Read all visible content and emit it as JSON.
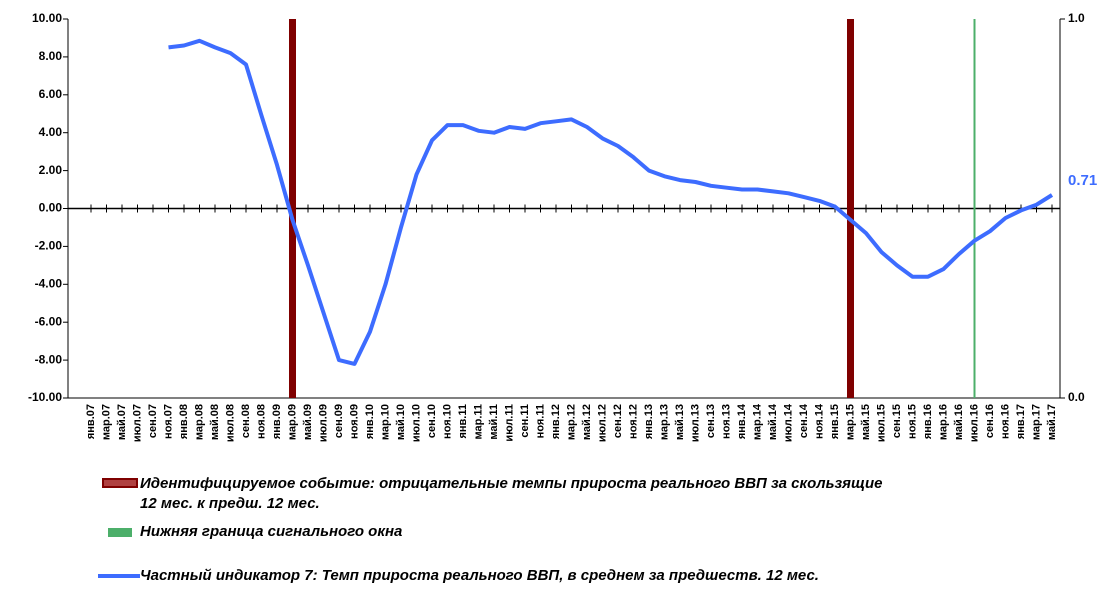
{
  "chart_data": {
    "type": "line",
    "categories": [
      "янв.07",
      "мар.07",
      "май.07",
      "июл.07",
      "сен.07",
      "ноя.07",
      "янв.08",
      "мар.08",
      "май.08",
      "июл.08",
      "сен.08",
      "ноя.08",
      "янв.09",
      "мар.09",
      "май.09",
      "июл.09",
      "сен.09",
      "ноя.09",
      "янв.10",
      "мар.10",
      "май.10",
      "июл.10",
      "сен.10",
      "ноя.10",
      "янв.11",
      "мар.11",
      "май.11",
      "июл.11",
      "сен.11",
      "ноя.11",
      "янв.12",
      "мар.12",
      "май.12",
      "июл.12",
      "сен.12",
      "ноя.12",
      "янв.13",
      "мар.13",
      "май.13",
      "июл.13",
      "сен.13",
      "ноя.13",
      "янв.14",
      "мар.14",
      "май.14",
      "июл.14",
      "сен.14",
      "ноя.14",
      "янв.15",
      "мар.15",
      "май.15",
      "июл.15",
      "сен.15",
      "ноя.15",
      "янв.16",
      "мар.16",
      "май.16",
      "июл.16",
      "сен.16",
      "ноя.16",
      "янв.17",
      "мар.17",
      "май.17"
    ],
    "series": [
      {
        "name": "Частный индикатор 7: Темп прироста реального ВВП, в среднем за предшеств. 12 мес.",
        "color": "#3d6cff",
        "values": [
          null,
          null,
          null,
          null,
          null,
          8.5,
          8.6,
          8.85,
          8.5,
          8.2,
          7.6,
          4.9,
          2.3,
          -0.6,
          -3.0,
          -5.5,
          -8.0,
          -8.2,
          -6.5,
          -4.0,
          -1.0,
          1.8,
          3.6,
          4.4,
          4.4,
          4.1,
          4.0,
          4.3,
          4.2,
          4.5,
          4.6,
          4.7,
          4.3,
          3.7,
          3.3,
          2.7,
          2.0,
          1.7,
          1.5,
          1.4,
          1.2,
          1.1,
          1.0,
          1.0,
          0.9,
          0.8,
          0.6,
          0.4,
          0.1,
          -0.6,
          -1.3,
          -2.3,
          -3.0,
          -3.6,
          -3.6,
          -3.2,
          -2.4,
          -1.7,
          -1.2,
          -0.5,
          -0.1,
          0.2,
          0.71
        ]
      },
      {
        "name": "Идентифицируемое событие: отрицательные темпы прироста реального ВВП за скользящие 12 мес. к предш. 12 мес.",
        "color": "#7f0000",
        "type": "bar",
        "axis": "y2",
        "values": [
          null,
          null,
          null,
          null,
          null,
          null,
          null,
          null,
          null,
          null,
          null,
          null,
          null,
          1,
          null,
          null,
          null,
          null,
          null,
          null,
          null,
          null,
          null,
          null,
          null,
          null,
          null,
          null,
          null,
          null,
          null,
          null,
          null,
          null,
          null,
          null,
          null,
          null,
          null,
          null,
          null,
          null,
          null,
          null,
          null,
          null,
          null,
          null,
          null,
          1,
          null,
          null,
          null,
          null,
          null,
          null,
          null,
          null,
          null,
          null,
          null,
          null,
          null
        ]
      },
      {
        "name": "Нижняя граница сигнального окна",
        "color": "#4caf6a",
        "type": "bar",
        "axis": "y2",
        "values": [
          null,
          null,
          null,
          null,
          null,
          null,
          null,
          null,
          null,
          null,
          null,
          null,
          null,
          null,
          null,
          null,
          null,
          null,
          null,
          null,
          null,
          null,
          null,
          null,
          null,
          null,
          null,
          null,
          null,
          null,
          null,
          null,
          null,
          null,
          null,
          null,
          null,
          null,
          null,
          null,
          null,
          null,
          null,
          null,
          null,
          null,
          null,
          null,
          null,
          null,
          null,
          null,
          null,
          null,
          null,
          null,
          null,
          1,
          null,
          null,
          null,
          null,
          null
        ]
      }
    ],
    "ylim": [
      -10,
      10
    ],
    "yticks": [
      {
        "value": -10,
        "label": "-10.00"
      },
      {
        "value": -8,
        "label": "-8.00"
      },
      {
        "value": -6,
        "label": "-6.00"
      },
      {
        "value": -4,
        "label": "-4.00"
      },
      {
        "value": -2,
        "label": "-2.00"
      },
      {
        "value": 0,
        "label": "0.00"
      },
      {
        "value": 2,
        "label": "2.00"
      },
      {
        "value": 4,
        "label": "4.00"
      },
      {
        "value": 6,
        "label": "6.00"
      },
      {
        "value": 8,
        "label": "8.00"
      },
      {
        "value": 10,
        "label": "10.00"
      }
    ],
    "y2lim": [
      0,
      1
    ],
    "y2ticks": [
      {
        "value": 0,
        "label": "0.0"
      },
      {
        "value": 1,
        "label": "1.0"
      }
    ],
    "grid": false
  }
}
